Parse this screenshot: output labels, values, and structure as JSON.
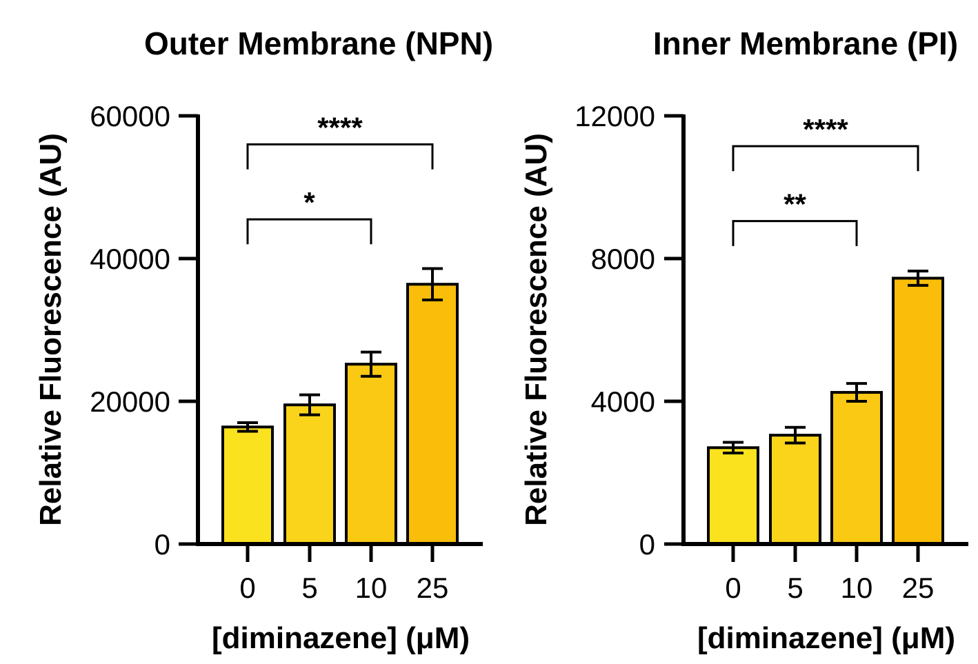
{
  "colors": {
    "bars": [
      "#FBE21F",
      "#F9D41B",
      "#F9C914",
      "#F9BD0A"
    ],
    "axis": "#000000",
    "text": "#000000"
  },
  "chart_data": [
    {
      "type": "bar",
      "title": "Outer Membrane (NPN)",
      "xlabel": "[diminazene] (μM)",
      "ylabel": "Relative Fluorescence (AU)",
      "categories": [
        "0",
        "5",
        "10",
        "25"
      ],
      "values": [
        16400,
        19500,
        25200,
        36400
      ],
      "errors": [
        600,
        1400,
        1700,
        2200
      ],
      "ylim": [
        0,
        60000
      ],
      "yticks": [
        0,
        20000,
        40000,
        60000
      ],
      "ytick_labels": [
        "0",
        "20000",
        "40000",
        "60000"
      ],
      "significance": [
        {
          "from": 0,
          "to": 3,
          "label": "****",
          "y": 56000,
          "drop": 3500
        },
        {
          "from": 0,
          "to": 2,
          "label": "*",
          "y": 45500,
          "drop": 3500
        }
      ],
      "grid": false,
      "legend": "none"
    },
    {
      "type": "bar",
      "title": "Inner Membrane (PI)",
      "xlabel": "[diminazene] (μM)",
      "ylabel": "Relative Fluorescence (AU)",
      "categories": [
        "0",
        "5",
        "10",
        "25"
      ],
      "values": [
        2700,
        3050,
        4250,
        7450
      ],
      "errors": [
        150,
        220,
        250,
        200
      ],
      "ylim": [
        0,
        12000
      ],
      "yticks": [
        0,
        4000,
        8000,
        12000
      ],
      "ytick_labels": [
        "0",
        "4000",
        "8000",
        "12000"
      ],
      "significance": [
        {
          "from": 0,
          "to": 3,
          "label": "****",
          "y": 11150,
          "drop": 700
        },
        {
          "from": 0,
          "to": 2,
          "label": "**",
          "y": 9050,
          "drop": 700
        }
      ],
      "grid": false,
      "legend": "none"
    }
  ]
}
